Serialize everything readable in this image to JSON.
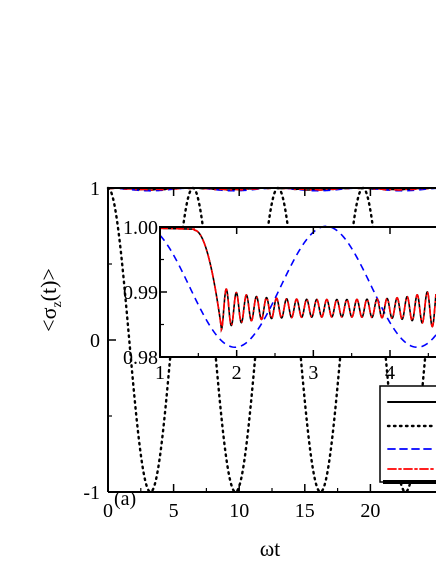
{
  "chart_data": [
    {
      "type": "line",
      "panel_label": "(a)",
      "xlabel": "ωt",
      "ylabel": "<σz(t)>",
      "ylabel_main": "<σ",
      "ylabel_sub": "z",
      "ylabel_end": "(t)>",
      "xlim": [
        0,
        25
      ],
      "ylim": [
        -1,
        1
      ],
      "x_ticks": [
        0,
        5,
        10,
        15,
        20
      ],
      "x_tick_labels": [
        "0",
        "5",
        "10",
        "15",
        "20"
      ],
      "y_ticks": [
        -1,
        0,
        1
      ],
      "y_tick_labels": [
        "-1",
        "0",
        "1"
      ],
      "grid": false,
      "legend_placement": "bottom-right (partially cut off)",
      "series": [
        {
          "style": "solid",
          "color": "#000000",
          "formula": "near-1 with small oscillations",
          "x": [
            0,
            25
          ],
          "y": [
            1,
            0.9875
          ]
        },
        {
          "style": "dotted",
          "color": "#000000",
          "formula": "cos(0.97 ωt)",
          "x": [
            0,
            3.24,
            6.48,
            9.72,
            12.96,
            16.2,
            19.44,
            22.68
          ],
          "y": [
            1,
            -1,
            1,
            -1,
            1,
            -1,
            1,
            -1
          ]
        },
        {
          "style": "dashed",
          "color": "#0000ff",
          "formula": "near-1 slow oscillation",
          "x": [
            0,
            25
          ],
          "y": [
            1,
            0.9815
          ]
        },
        {
          "style": "dash-dot",
          "color": "#ff0000",
          "formula": "near-1 with small oscillations",
          "x": [
            0,
            25
          ],
          "y": [
            1,
            0.9875
          ]
        }
      ]
    },
    {
      "type": "line",
      "role": "inset",
      "xlim": [
        1,
        4.6
      ],
      "ylim": [
        0.98,
        1.0
      ],
      "x_ticks": [
        1,
        2,
        3,
        4
      ],
      "x_tick_labels": [
        "1",
        "2",
        "3",
        "4"
      ],
      "y_ticks": [
        0.98,
        0.99,
        1.0
      ],
      "y_tick_labels": [
        "0.98",
        "0.99",
        "1.00"
      ],
      "grid": false,
      "series": [
        {
          "style": "solid",
          "color": "#000000",
          "x": [
            1.0,
            1.4,
            1.6,
            1.8,
            2.0,
            3.0,
            4.0,
            4.4,
            4.6
          ],
          "y": [
            0.9998,
            0.9995,
            0.992,
            0.9845,
            0.9875,
            0.9875,
            0.9875,
            0.9855,
            0.991
          ]
        },
        {
          "style": "dashed",
          "color": "#0000ff",
          "x": [
            1.0,
            1.5,
            2.0,
            2.5,
            3.0,
            3.5,
            4.0,
            4.5,
            4.6
          ],
          "y": [
            0.9975,
            0.9955,
            0.9905,
            0.9845,
            0.9815,
            0.9828,
            0.9875,
            0.9935,
            0.9945
          ]
        },
        {
          "style": "dash-dot",
          "color": "#ff0000",
          "x": [
            1.0,
            1.4,
            1.6,
            1.8,
            2.0,
            3.0,
            4.0,
            4.4,
            4.6
          ],
          "y": [
            0.9998,
            0.9995,
            0.992,
            0.9845,
            0.9875,
            0.9875,
            0.9875,
            0.9855,
            0.991
          ]
        }
      ]
    }
  ],
  "colors": {
    "black": "#000000",
    "blue": "#0000ff",
    "red": "#ff0000"
  }
}
